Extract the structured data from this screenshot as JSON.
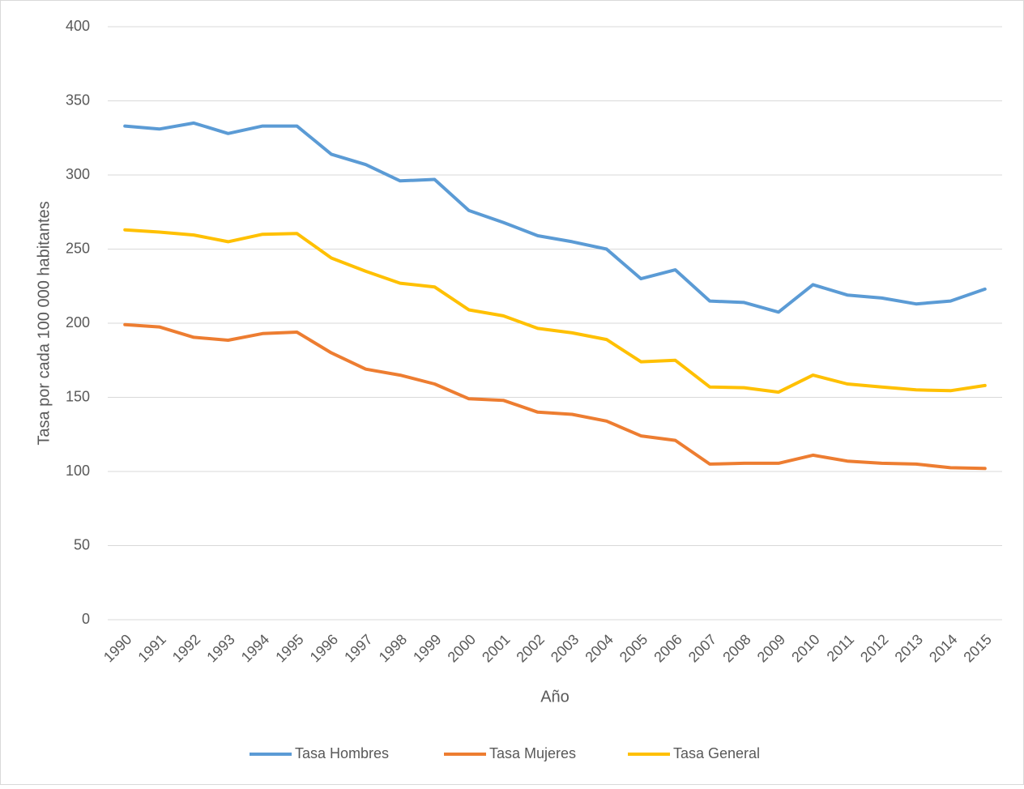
{
  "chart_data": {
    "type": "line",
    "x_label": "Año",
    "y_label": "Tasa por cada 100 000 habitantes",
    "categories": [
      "1990",
      "1991",
      "1992",
      "1993",
      "1994",
      "1995",
      "1996",
      "1997",
      "1998",
      "1999",
      "2000",
      "2001",
      "2002",
      "2003",
      "2004",
      "2005",
      "2006",
      "2007",
      "2008",
      "2009",
      "2010",
      "2011",
      "2012",
      "2013",
      "2014",
      "2015"
    ],
    "series": [
      {
        "name": "Tasa Hombres",
        "color": "#5b9bd5",
        "values": [
          333,
          331,
          335,
          328,
          333,
          333,
          314,
          307,
          296,
          297,
          276,
          268,
          259,
          255,
          250,
          230,
          236,
          215,
          214,
          207.5,
          226,
          219,
          217,
          213,
          215,
          223
        ]
      },
      {
        "name": "Tasa Mujeres",
        "color": "#ed7d31",
        "values": [
          199,
          197.5,
          190.5,
          188.5,
          193,
          194,
          180,
          169,
          165,
          159,
          149,
          148,
          140,
          138.5,
          134,
          124,
          121,
          105,
          105.5,
          105.5,
          111,
          107,
          105.5,
          105,
          102.5,
          102
        ]
      },
      {
        "name": "Tasa General",
        "color": "#ffc000",
        "values": [
          263,
          261.5,
          259.5,
          255,
          260,
          260.5,
          244,
          235,
          227,
          224.5,
          209,
          205,
          196.5,
          193.5,
          189,
          174,
          175,
          157,
          156.5,
          153.5,
          165,
          159,
          157,
          155,
          154.5,
          158
        ]
      }
    ],
    "ylim": [
      0,
      400
    ],
    "yticks": [
      0,
      50,
      100,
      150,
      200,
      250,
      300,
      350,
      400
    ],
    "grid": true,
    "legend": "bottom"
  }
}
